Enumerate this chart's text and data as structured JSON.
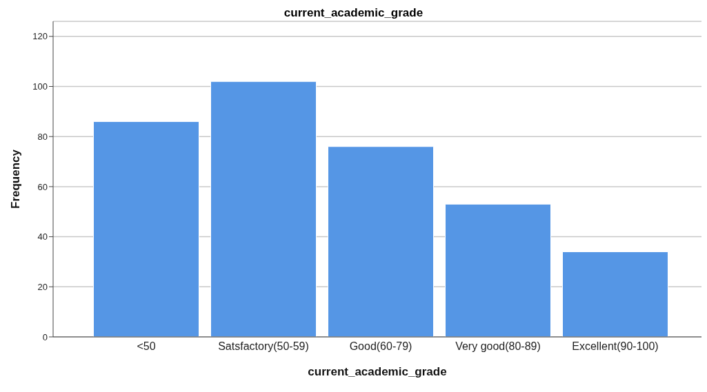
{
  "chart_data": {
    "type": "bar",
    "title": "current_academic_grade",
    "xlabel": "current_academic_grade",
    "ylabel": "Frequency",
    "categories": [
      "<50",
      "Satsfactory(50-59)",
      "Good(60-79)",
      "Very good(80-89)",
      "Excellent(90-100)"
    ],
    "values": [
      86,
      102,
      76,
      53,
      34
    ],
    "color": "#5596e5",
    "ylim": [
      0,
      126
    ],
    "yticks": [
      0,
      20,
      40,
      60,
      80,
      100,
      120
    ],
    "grid": "y"
  }
}
